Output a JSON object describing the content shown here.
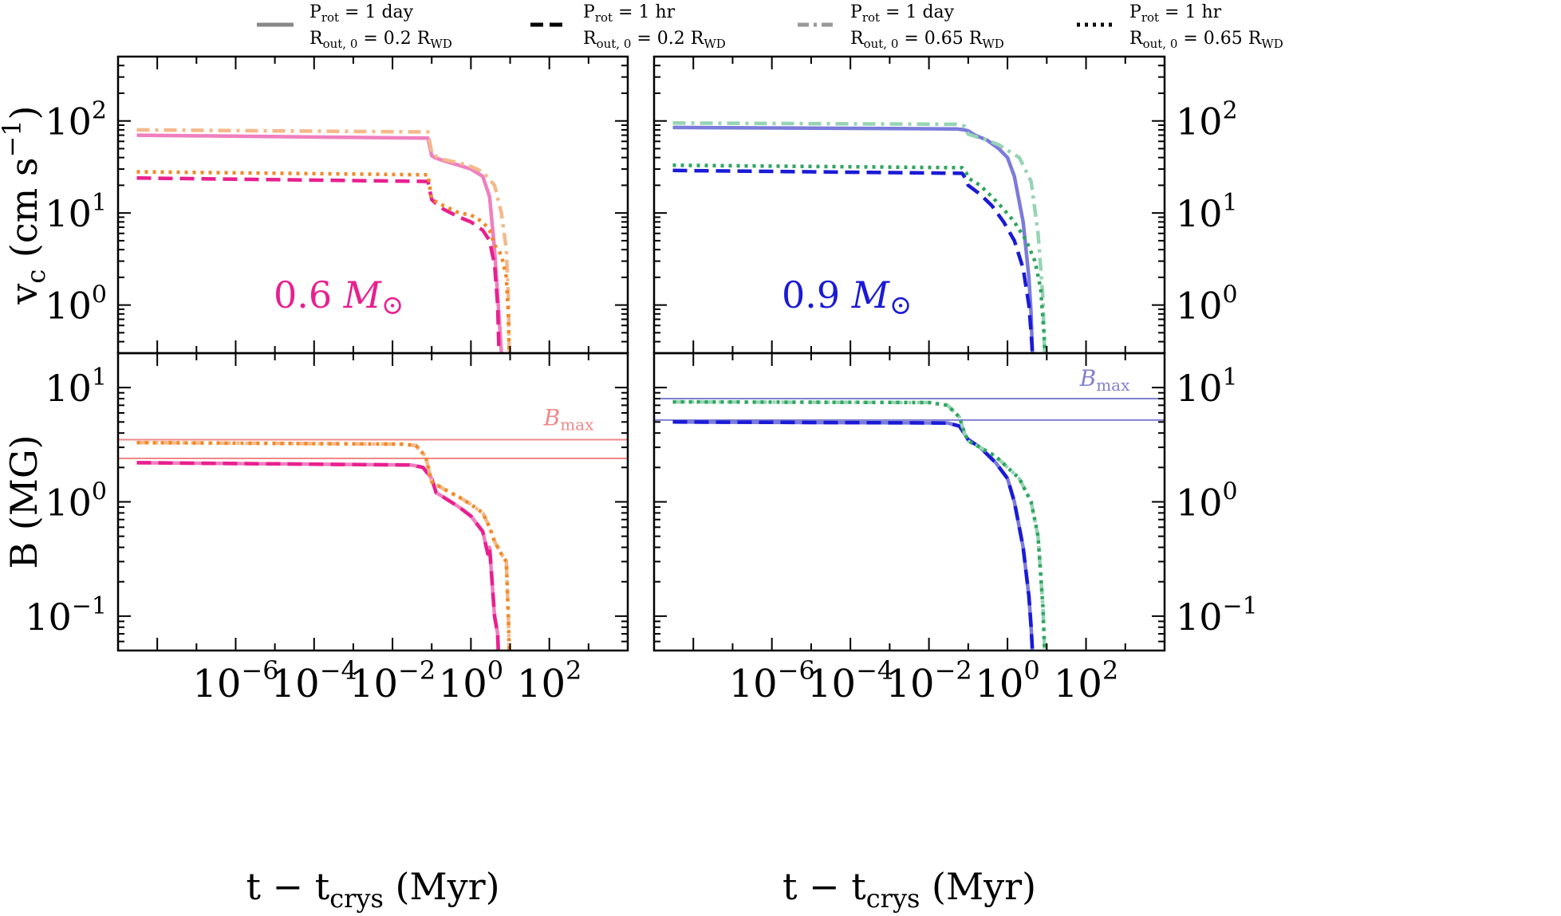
{
  "chart_data": {
    "type": "line",
    "x_scale": "log",
    "y_scale": "log",
    "xlim": [
      1e-09,
      10000
    ],
    "x_ticks": [
      {
        "value": 1e-06,
        "base": "10",
        "exp": "−6"
      },
      {
        "value": 0.0001,
        "base": "10",
        "exp": "−4"
      },
      {
        "value": 0.01,
        "base": "10",
        "exp": "−2"
      },
      {
        "value": 1,
        "base": "10",
        "exp": "0"
      },
      {
        "value": 100,
        "base": "10",
        "exp": "2"
      }
    ],
    "xlabel": {
      "main": "t − t",
      "sub": "crys",
      "tail": " (Myr)"
    },
    "legend": [
      {
        "style": "solid",
        "line1_main": "P",
        "line1_sub": "rot",
        "line1_tail": " = 1 day",
        "line2_main": "R",
        "line2_sub": "out, 0",
        "line2_tail": " = 0.2 R",
        "line2_sub2": "WD"
      },
      {
        "style": "dashed",
        "line1_main": "P",
        "line1_sub": "rot",
        "line1_tail": " = 1 hr",
        "line2_main": "R",
        "line2_sub": "out, 0",
        "line2_tail": " = 0.2 R",
        "line2_sub2": "WD"
      },
      {
        "style": "dashdot",
        "line1_main": "P",
        "line1_sub": "rot",
        "line1_tail": " = 1 day",
        "line2_main": "R",
        "line2_sub": "out, 0",
        "line2_tail": " = 0.65 R",
        "line2_sub2": "WD"
      },
      {
        "style": "dotted",
        "line1_main": "P",
        "line1_sub": "rot",
        "line1_tail": " = 1 hr",
        "line2_main": "R",
        "line2_sub": "out, 0",
        "line2_tail": " = 0.65 R",
        "line2_sub2": "WD"
      }
    ],
    "panels": [
      {
        "id": "top-left",
        "quantity": "vc",
        "ylim": [
          0.3,
          500
        ],
        "y_ticks": [
          {
            "value": 1,
            "base": "10",
            "exp": "0"
          },
          {
            "value": 10,
            "base": "10",
            "exp": "1"
          },
          {
            "value": 100,
            "base": "10",
            "exp": "2"
          }
        ],
        "ylabel": {
          "main": "v",
          "sub": "c",
          "tail": " (cm s",
          "sup": "−1",
          "end": ")"
        },
        "annotation": {
          "text": "0.6 ",
          "italic": "M",
          "sym": "⊙",
          "color": "#e8208f"
        },
        "series": [
          {
            "name": "P_rot=1 day, R_out=0.2 R_WD",
            "style": "solid",
            "color": "#f07fbf",
            "x": [
              3e-09,
              0.08,
              0.1,
              0.12,
              0.2,
              0.5,
              1,
              2,
              3,
              4,
              5,
              6
            ],
            "y": [
              70,
              65,
              42,
              40,
              37,
              33,
              30,
              25,
              15,
              4,
              1,
              0.3
            ]
          },
          {
            "name": "P_rot=1 hr, R_out=0.2 R_WD",
            "style": "dashed",
            "color": "#e8208f",
            "x": [
              3e-09,
              0.08,
              0.1,
              0.12,
              0.2,
              0.5,
              1,
              2,
              3,
              3.5,
              4,
              4.8,
              5.2
            ],
            "y": [
              24,
              22,
              14,
              13,
              11,
              9,
              8,
              6.5,
              5,
              3.6,
              2.8,
              1,
              0.3
            ]
          },
          {
            "name": "P_rot=1 day, R_out=0.65 R_WD",
            "style": "dashdot",
            "color": "#f5b98a",
            "x": [
              3e-09,
              0.08,
              0.1,
              0.12,
              0.2,
              0.5,
              1,
              2,
              4,
              6,
              8,
              9,
              9.5
            ],
            "y": [
              80,
              76,
              45,
              42,
              38,
              35,
              32,
              28,
              20,
              10,
              4,
              1.2,
              0.3
            ]
          },
          {
            "name": "P_rot=1 hr, R_out=0.65 R_WD",
            "style": "dotted",
            "color": "#f08a28",
            "x": [
              3e-09,
              0.08,
              0.1,
              0.12,
              0.2,
              0.5,
              1,
              2,
              3,
              4,
              6,
              8,
              9,
              9.5
            ],
            "y": [
              28,
              26,
              14,
              13.5,
              12,
              10,
              9.5,
              8,
              6.5,
              4.5,
              3.5,
              2,
              0.8,
              0.3
            ]
          }
        ]
      },
      {
        "id": "top-right",
        "quantity": "vc",
        "ylim": [
          0.3,
          500
        ],
        "y_ticks": [
          {
            "value": 1,
            "base": "10",
            "exp": "0"
          },
          {
            "value": 10,
            "base": "10",
            "exp": "1"
          },
          {
            "value": 100,
            "base": "10",
            "exp": "2"
          }
        ],
        "annotation": {
          "text": "0.9 ",
          "italic": "M",
          "sym": "⊙",
          "color": "#1a1ad6"
        },
        "series": [
          {
            "name": "P_rot=1 day, R_out=0.2 R_WD",
            "style": "solid",
            "color": "#7b7bdb",
            "x": [
              3e-09,
              0.05,
              0.08,
              0.1,
              0.15,
              0.3,
              0.6,
              1,
              1.5,
              2.5,
              3.5,
              4,
              4.3
            ],
            "y": [
              85,
              82,
              80,
              78,
              70,
              62,
              50,
              40,
              25,
              8,
              2,
              0.8,
              0.3
            ]
          },
          {
            "name": "P_rot=1 hr, R_out=0.2 R_WD",
            "style": "dashed",
            "color": "#1a1ad6",
            "x": [
              3e-09,
              0.07,
              0.09,
              0.1,
              0.2,
              0.4,
              0.8,
              1.5,
              2.5,
              3.5,
              4,
              4.3
            ],
            "y": [
              29,
              27,
              23,
              20,
              16,
              12,
              8,
              5,
              2.5,
              1,
              0.5,
              0.3
            ]
          },
          {
            "name": "P_rot=1 day, R_out=0.65 R_WD",
            "style": "dashdot",
            "color": "#96d4b4",
            "x": [
              3e-09,
              0.05,
              0.08,
              0.1,
              0.15,
              0.3,
              0.6,
              1,
              2,
              4,
              6,
              8,
              8.8
            ],
            "y": [
              95,
              92,
              88,
              72,
              68,
              62,
              55,
              48,
              40,
              22,
              6,
              1.2,
              0.3
            ]
          },
          {
            "name": "P_rot=1 hr, R_out=0.65 R_WD",
            "style": "dotted",
            "color": "#2fa55f",
            "x": [
              3e-09,
              0.07,
              0.09,
              0.1,
              0.2,
              0.4,
              0.8,
              1.5,
              3,
              5,
              7,
              8.5,
              9
            ],
            "y": [
              33,
              31,
              27,
              24,
              20,
              15,
              11,
              8,
              5,
              3,
              1.5,
              0.5,
              0.3
            ]
          }
        ]
      },
      {
        "id": "bottom-left",
        "quantity": "B",
        "ylim": [
          0.05,
          20
        ],
        "y_ticks": [
          {
            "value": 0.1,
            "base": "10",
            "exp": "−1"
          },
          {
            "value": 1,
            "base": "10",
            "exp": "0"
          },
          {
            "value": 10,
            "base": "10",
            "exp": "1"
          }
        ],
        "ylabel": {
          "main": "B (MG)"
        },
        "bmax": {
          "values": [
            3.5,
            2.4
          ],
          "color": "#f08888",
          "label_main": "B",
          "label_sub": "max"
        },
        "series": [
          {
            "name": "P_rot=1 day, R_out=0.2 R_WD",
            "style": "solid",
            "color": "#f07fbf",
            "x": [
              3e-09,
              0.03,
              0.06,
              0.1,
              0.13,
              0.2,
              0.5,
              1,
              2,
              2.7,
              3,
              4,
              4.8,
              5
            ],
            "y": [
              2.2,
              2.1,
              2,
              1.6,
              1.2,
              1.1,
              0.9,
              0.75,
              0.55,
              0.35,
              0.4,
              0.1,
              0.07,
              0.05
            ]
          },
          {
            "name": "P_rot=1 hr, R_out=0.2 R_WD",
            "style": "dashed",
            "color": "#e8208f",
            "x": [
              3e-09,
              0.03,
              0.06,
              0.1,
              0.13,
              0.2,
              0.5,
              1,
              2,
              2.7,
              3,
              4,
              4.8,
              5
            ],
            "y": [
              2.2,
              2.1,
              2,
              1.6,
              1.2,
              1.1,
              0.9,
              0.75,
              0.55,
              0.35,
              0.4,
              0.1,
              0.07,
              0.05
            ]
          },
          {
            "name": "P_rot=1 day, R_out=0.65 R_WD",
            "style": "dashdot",
            "color": "#f5b98a",
            "x": [
              3e-09,
              0.02,
              0.04,
              0.07,
              0.1,
              0.2,
              0.5,
              1,
              2,
              3,
              4,
              6,
              8,
              9,
              9.5
            ],
            "y": [
              3.3,
              3.2,
              3.1,
              2.5,
              1.5,
              1.3,
              1.1,
              0.95,
              0.8,
              0.6,
              0.45,
              0.35,
              0.3,
              0.1,
              0.05
            ]
          },
          {
            "name": "P_rot=1 hr, R_out=0.65 R_WD",
            "style": "dotted",
            "color": "#f08a28",
            "x": [
              3e-09,
              0.02,
              0.04,
              0.07,
              0.1,
              0.2,
              0.5,
              1,
              2,
              3,
              4,
              6,
              8,
              9,
              9.5
            ],
            "y": [
              3.3,
              3.2,
              3.1,
              2.5,
              1.5,
              1.3,
              1.1,
              0.95,
              0.8,
              0.6,
              0.45,
              0.35,
              0.3,
              0.1,
              0.05
            ]
          }
        ]
      },
      {
        "id": "bottom-right",
        "quantity": "B",
        "ylim": [
          0.05,
          20
        ],
        "y_ticks": [
          {
            "value": 0.1,
            "base": "10",
            "exp": "−1"
          },
          {
            "value": 1,
            "base": "10",
            "exp": "0"
          },
          {
            "value": 10,
            "base": "10",
            "exp": "1"
          }
        ],
        "bmax": {
          "values": [
            8,
            5.2
          ],
          "color": "#8080d0",
          "label_main": "B",
          "label_sub": "max"
        },
        "series": [
          {
            "name": "P_rot=1 day, R_out=0.2 R_WD",
            "style": "solid",
            "color": "#7b7bdb",
            "x": [
              3e-09,
              0.03,
              0.06,
              0.1,
              0.2,
              0.5,
              1,
              1.5,
              2.5,
              3.5,
              4,
              4.3
            ],
            "y": [
              5,
              4.9,
              4.6,
              3.5,
              3,
              2.2,
              1.6,
              1,
              0.4,
              0.15,
              0.08,
              0.05
            ]
          },
          {
            "name": "P_rot=1 hr, R_out=0.2 R_WD",
            "style": "dashed",
            "color": "#1a1ad6",
            "x": [
              3e-09,
              0.03,
              0.06,
              0.1,
              0.2,
              0.5,
              1,
              1.5,
              2.5,
              3.5,
              4,
              4.3
            ],
            "y": [
              5,
              4.9,
              4.6,
              3.5,
              3,
              2.2,
              1.6,
              1,
              0.4,
              0.15,
              0.08,
              0.05
            ]
          },
          {
            "name": "P_rot=1 day, R_out=0.65 R_WD",
            "style": "dashdot",
            "color": "#96d4b4",
            "x": [
              3e-09,
              0.01,
              0.03,
              0.06,
              0.08,
              0.1,
              0.2,
              0.5,
              1,
              2,
              4,
              6,
              8,
              8.8
            ],
            "y": [
              7.5,
              7.4,
              7,
              5.5,
              4,
              3.4,
              3,
              2.5,
              2,
              1.6,
              1,
              0.5,
              0.12,
              0.05
            ]
          },
          {
            "name": "P_rot=1 hr, R_out=0.65 R_WD",
            "style": "dotted",
            "color": "#2fa55f",
            "x": [
              3e-09,
              0.01,
              0.03,
              0.06,
              0.08,
              0.1,
              0.2,
              0.5,
              1,
              2,
              4,
              6,
              8,
              8.8
            ],
            "y": [
              7.5,
              7.4,
              7,
              5.5,
              4,
              3.4,
              3,
              2.5,
              2,
              1.6,
              1,
              0.5,
              0.12,
              0.05
            ]
          }
        ]
      }
    ]
  }
}
